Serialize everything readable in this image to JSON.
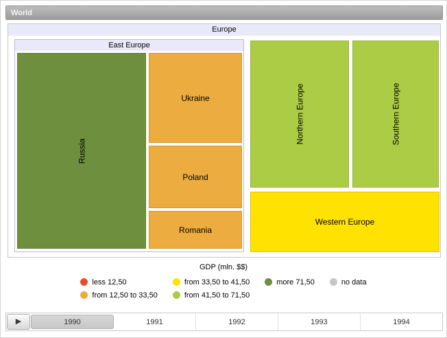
{
  "breadcrumb": {
    "label": "World"
  },
  "chart_data": {
    "type": "treemap",
    "title": "Europe",
    "unit": "GDP (mln. $$)",
    "current_year": "1990",
    "root": {
      "name": "Europe",
      "children": [
        {
          "name": "East Europe",
          "children": [
            {
              "name": "Russia",
              "color": "#6E8F3D",
              "category": "more 71,50"
            },
            {
              "name": "Ukraine",
              "color": "#EDAC3F",
              "category": "from 12,50 to 33,50"
            },
            {
              "name": "Poland",
              "color": "#EDAC3F",
              "category": "from 12,50 to 33,50"
            },
            {
              "name": "Romania",
              "color": "#EDAC3F",
              "category": "from 12,50 to 33,50"
            }
          ]
        },
        {
          "name": "Northern Europe",
          "color": "#ACCC45",
          "category": "from 41,50 to 71,50"
        },
        {
          "name": "Southern Europe",
          "color": "#ACCC45",
          "category": "from 41,50 to 71,50"
        },
        {
          "name": "Western Europe",
          "color": "#FFE200",
          "category": "from 33,50 to 41,50"
        }
      ]
    },
    "legend": {
      "title": "GDP (mln. $$)",
      "items": [
        {
          "label": "less 12,50",
          "color": "#EA4A2E"
        },
        {
          "label": "from 12,50 to 33,50",
          "color": "#EDAC3F"
        },
        {
          "label": "from 33,50 to 41,50",
          "color": "#FFE200"
        },
        {
          "label": "from 41,50 to 71,50",
          "color": "#ACCC45"
        },
        {
          "label": "more 71,50",
          "color": "#6E8F3D"
        },
        {
          "label": "no data",
          "color": "#C6C6C6"
        }
      ]
    }
  },
  "timeline": {
    "play_icon": "▶",
    "selected_year": "1990",
    "years": [
      "1990",
      "1991",
      "1992",
      "1993",
      "1994"
    ]
  }
}
